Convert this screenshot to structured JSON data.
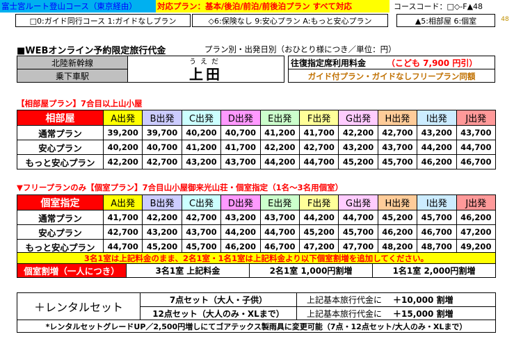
{
  "header": {
    "title": "富士宮ルート登山コース（東京経由）",
    "plans_supported": "対応プラン：基本/後泊/前泊/前後泊プラン すべて対応",
    "course_code": "コースコード：□◇-F▲48",
    "side_number": "48"
  },
  "legend": {
    "guide": "□0:ガイド同行コース 1:ガイドなしプラン",
    "insurance": "◇6:保険なし 9:安心プラン A:もっと安心プラン",
    "room": "▲5:相部屋 6:個室"
  },
  "fee_section": {
    "title": "■WEBオンライン予約限定旅行代金",
    "subtitle": "プラン別・出発日別（おひとり様につき／単位：円）",
    "line": "北陸新幹線",
    "station_label": "乗下車駅",
    "station_reading": "うえだ",
    "station_name": "上田",
    "roundtrip_label": "往復指定席利用料金",
    "child_fare": "（こども 7,900 円引）",
    "same_price_note": "ガイド付プラン・ガイドなしフリープラン同額"
  },
  "shared_room": {
    "title": "【相部屋プラン】7合目以上山小屋",
    "corner": "相部屋",
    "columns": [
      "A出発",
      "B出発",
      "C出発",
      "D出発",
      "E出発",
      "F出発",
      "G出発",
      "H出発",
      "I出発",
      "J出発"
    ],
    "rows": [
      {
        "label": "通常プラン",
        "values": [
          "39,200",
          "39,700",
          "40,200",
          "40,700",
          "41,200",
          "41,700",
          "42,200",
          "42,700",
          "43,200",
          "43,700"
        ]
      },
      {
        "label": "安心プラン",
        "values": [
          "40,200",
          "40,700",
          "41,200",
          "41,700",
          "42,200",
          "42,700",
          "43,200",
          "43,700",
          "44,200",
          "44,700"
        ]
      },
      {
        "label": "もっと安心プラン",
        "values": [
          "42,200",
          "42,700",
          "43,200",
          "43,700",
          "44,200",
          "44,700",
          "45,200",
          "45,700",
          "46,200",
          "46,700"
        ]
      }
    ]
  },
  "private_room": {
    "title": "▼フリープランのみ【個室プラン】7合目山小屋御来光山荘・個室指定（1名～3名用個室）",
    "corner": "個室指定",
    "columns": [
      "A出発",
      "B出発",
      "C出発",
      "D出発",
      "E出発",
      "F出発",
      "G出発",
      "H出発",
      "I出発",
      "J出発"
    ],
    "rows": [
      {
        "label": "通常プラン",
        "values": [
          "41,700",
          "42,200",
          "42,700",
          "43,200",
          "43,700",
          "44,200",
          "44,700",
          "45,200",
          "45,700",
          "46,200"
        ]
      },
      {
        "label": "安心プラン",
        "values": [
          "42,700",
          "43,200",
          "43,700",
          "44,200",
          "44,700",
          "45,200",
          "45,700",
          "46,200",
          "46,700",
          "47,200"
        ]
      },
      {
        "label": "もっと安心プラン",
        "values": [
          "44,700",
          "45,200",
          "45,700",
          "46,200",
          "46,700",
          "47,200",
          "47,700",
          "48,200",
          "48,700",
          "49,200"
        ]
      }
    ],
    "note": "3名1室は上記料金のまま、2名1室・1名1室は上記料金より以下個室割増を追加してください。",
    "surcharge_label": "個室割増（一人につき）",
    "surcharges": [
      "3名1室 上記料金",
      "2名1室 1,000円割増",
      "1名1室 2,000円割増"
    ]
  },
  "rental": {
    "label": "＋レンタルセット",
    "rows": [
      {
        "name": "7点セット（大人・子供）",
        "desc": "上記基本旅行代金に",
        "price": "＋10,000 割増"
      },
      {
        "name": "12点セット（大人のみ・XLまで）",
        "desc": "上記基本旅行代金に",
        "price": "＋15,000 割増"
      }
    ],
    "note": "*レンタルセットグレードUP／2,500円増しにてゴアテックス製雨具に変更可能（7点・12点セット/大人のみ・XLまで）"
  },
  "colors": {
    "A": "#ffff00",
    "B": "#ccccff",
    "C": "#ccffff",
    "D": "#ff99ff",
    "E": "#ccffcc",
    "F": "#ffff99",
    "G": "#ffccff",
    "H": "#ffcc99",
    "I": "#ccecff",
    "J": "#ff9999",
    "section_red": "#ff0000",
    "header_gray": "#c0c0c0",
    "note_yellow": "#ffff00"
  }
}
